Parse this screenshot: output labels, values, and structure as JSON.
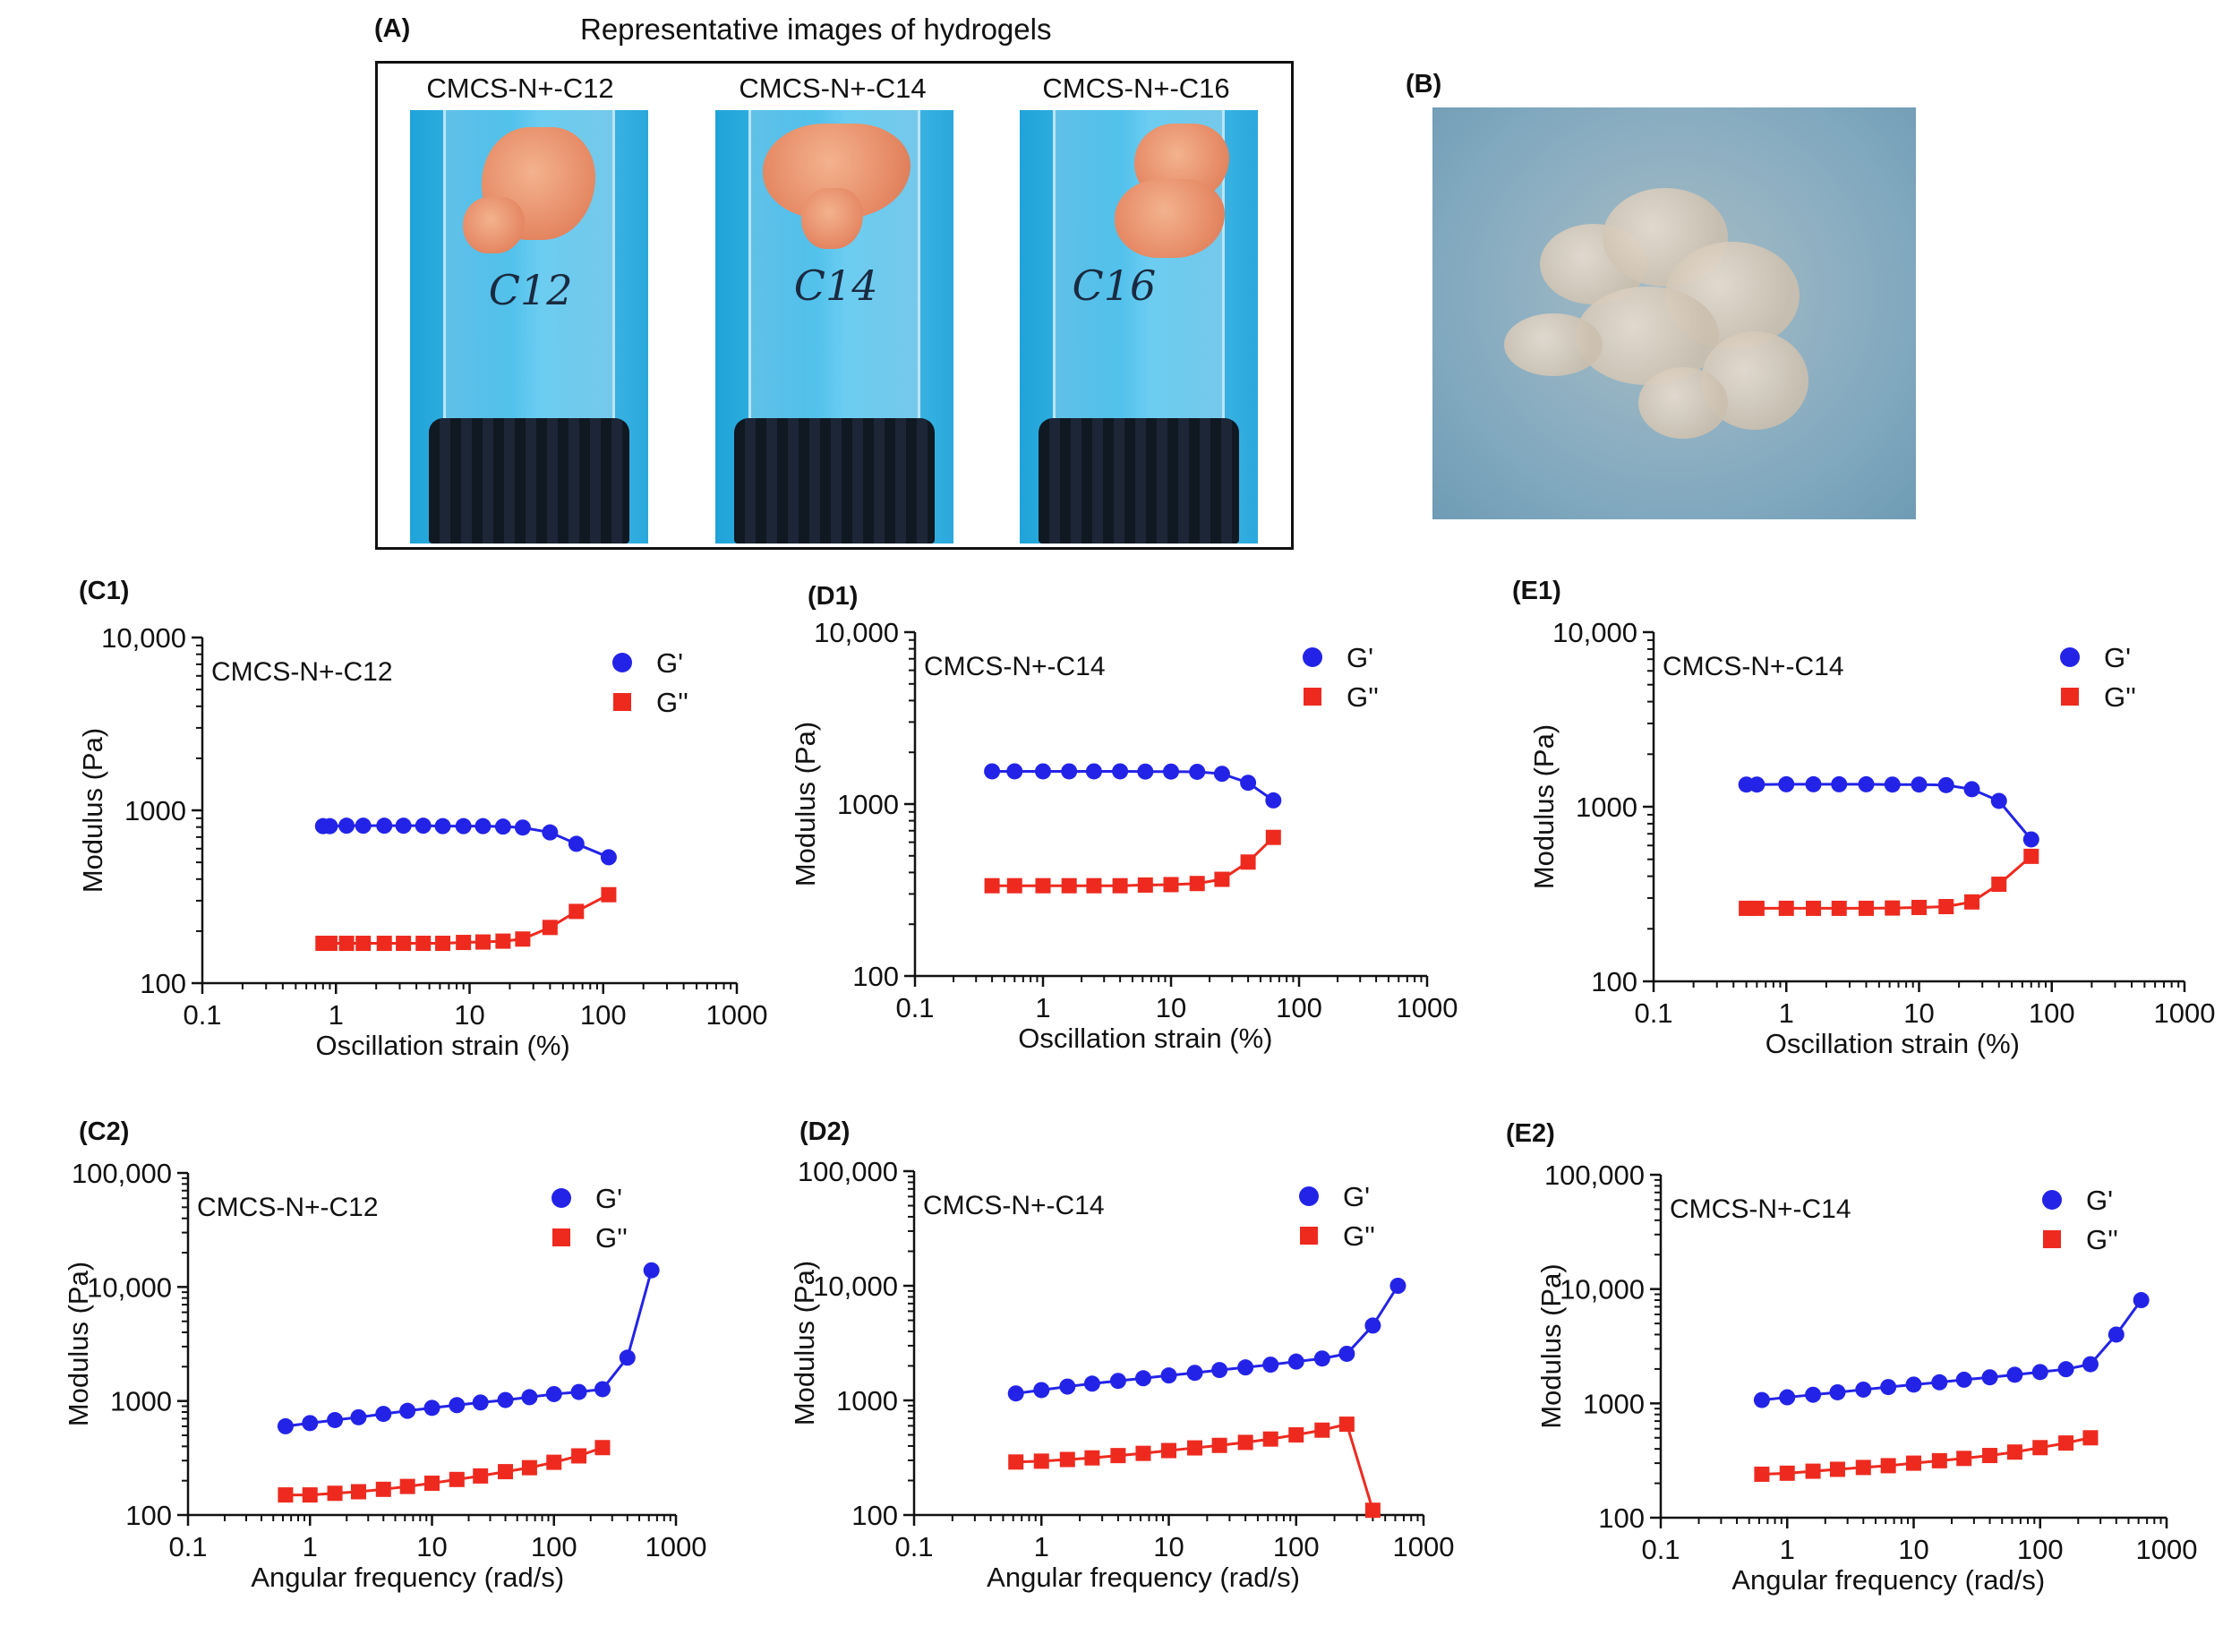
{
  "panel_a": {
    "letter": "(A)",
    "title": "Representative images of hydrogels",
    "vials": [
      {
        "label": "CMCS-N+-C12",
        "marker": "C12"
      },
      {
        "label": "CMCS-N+-C14",
        "marker": "C14"
      },
      {
        "label": "CMCS-N+-C16",
        "marker": "C16"
      }
    ]
  },
  "panel_b": {
    "letter": "(B)"
  },
  "colors": {
    "g_prime": "#2323e8",
    "g_double_prime": "#ee2a1f"
  },
  "chart_data": [
    {
      "id": "C1",
      "panel": "(C1)",
      "type": "scatter",
      "x_scale": "log",
      "y_scale": "log",
      "xlim": [
        0.1,
        1000
      ],
      "ylim": [
        100,
        10000
      ],
      "xticks": [
        0.1,
        1,
        10,
        100,
        1000
      ],
      "xtick_labels": [
        "0.1",
        "1",
        "10",
        "100",
        "1000"
      ],
      "yticks": [
        100,
        1000,
        10000
      ],
      "ytick_labels": [
        "100",
        "1000",
        "10,000"
      ],
      "xlabel": "Oscillation strain (%)",
      "ylabel": "Modulus (Pa)",
      "annotation": "CMCS-N+-C12",
      "legend_position": "top-right",
      "series": [
        {
          "name": "G'",
          "marker": "circle",
          "color": "#2323e8",
          "x": [
            0.8,
            0.9,
            1.2,
            1.6,
            2.3,
            3.2,
            4.5,
            6.3,
            9,
            12.6,
            17.8,
            25,
            40,
            63,
            110
          ],
          "y": [
            810,
            810,
            815,
            815,
            815,
            815,
            815,
            810,
            810,
            810,
            805,
            795,
            745,
            640,
            535
          ]
        },
        {
          "name": "G''",
          "marker": "square",
          "color": "#ee2a1f",
          "x": [
            0.8,
            0.9,
            1.2,
            1.6,
            2.3,
            3.2,
            4.5,
            6.3,
            9,
            12.6,
            17.8,
            25,
            40,
            63,
            110
          ],
          "y": [
            170,
            170,
            170,
            170,
            170,
            170,
            170,
            170,
            172,
            173,
            175,
            180,
            210,
            260,
            325
          ]
        }
      ]
    },
    {
      "id": "D1",
      "panel": "(D1)",
      "type": "scatter",
      "x_scale": "log",
      "y_scale": "log",
      "xlim": [
        0.1,
        1000
      ],
      "ylim": [
        100,
        10000
      ],
      "xticks": [
        0.1,
        1,
        10,
        100,
        1000
      ],
      "xtick_labels": [
        "0.1",
        "1",
        "10",
        "100",
        "1000"
      ],
      "yticks": [
        100,
        1000,
        10000
      ],
      "ytick_labels": [
        "100",
        "1000",
        "10,000"
      ],
      "xlabel": "Oscillation strain (%)",
      "ylabel": "Modulus (Pa)",
      "annotation": "CMCS-N+-C14",
      "legend_position": "top-right",
      "series": [
        {
          "name": "G'",
          "marker": "circle",
          "color": "#2323e8",
          "x": [
            0.4,
            0.6,
            1,
            1.6,
            2.5,
            4,
            6.3,
            10,
            16,
            25,
            40,
            63
          ],
          "y": [
            1550,
            1550,
            1550,
            1550,
            1550,
            1550,
            1545,
            1545,
            1540,
            1500,
            1330,
            1050
          ]
        },
        {
          "name": "G''",
          "marker": "square",
          "color": "#ee2a1f",
          "x": [
            0.4,
            0.6,
            1,
            1.6,
            2.5,
            4,
            6.3,
            10,
            16,
            25,
            40,
            63
          ],
          "y": [
            335,
            335,
            335,
            335,
            335,
            335,
            338,
            340,
            345,
            365,
            460,
            640
          ]
        }
      ]
    },
    {
      "id": "E1",
      "panel": "(E1)",
      "type": "scatter",
      "x_scale": "log",
      "y_scale": "log",
      "xlim": [
        0.1,
        1000
      ],
      "ylim": [
        100,
        10000
      ],
      "xticks": [
        0.1,
        1,
        10,
        100,
        1000
      ],
      "xtick_labels": [
        "0.1",
        "1",
        "10",
        "100",
        "1000"
      ],
      "yticks": [
        100,
        1000,
        10000
      ],
      "ytick_labels": [
        "100",
        "1000",
        "10,000"
      ],
      "xlabel": "Oscillation strain (%)",
      "ylabel": "Modulus (Pa)",
      "annotation": "CMCS-N+-C14",
      "legend_position": "top-right",
      "series": [
        {
          "name": "G'",
          "marker": "circle",
          "color": "#2323e8",
          "x": [
            0.5,
            0.6,
            1,
            1.6,
            2.5,
            4,
            6.3,
            10,
            16,
            25,
            40,
            70
          ],
          "y": [
            1340,
            1340,
            1345,
            1345,
            1345,
            1345,
            1340,
            1340,
            1330,
            1260,
            1080,
            650
          ]
        },
        {
          "name": "G''",
          "marker": "square",
          "color": "#ee2a1f",
          "x": [
            0.5,
            0.6,
            1,
            1.6,
            2.5,
            4,
            6.3,
            10,
            16,
            25,
            40,
            70
          ],
          "y": [
            262,
            262,
            262,
            262,
            262,
            262,
            263,
            265,
            268,
            285,
            360,
            520
          ]
        }
      ]
    },
    {
      "id": "C2",
      "panel": "(C2)",
      "type": "scatter",
      "x_scale": "log",
      "y_scale": "log",
      "xlim": [
        0.1,
        1000
      ],
      "ylim": [
        100,
        100000
      ],
      "xticks": [
        0.1,
        1,
        10,
        100,
        1000
      ],
      "xtick_labels": [
        "0.1",
        "1",
        "10",
        "100",
        "1000"
      ],
      "yticks": [
        100,
        1000,
        10000,
        100000
      ],
      "ytick_labels": [
        "100",
        "1000",
        "10,000",
        "100,000"
      ],
      "xlabel": "Angular frequency (rad/s)",
      "ylabel": "Modulus (Pa)",
      "annotation": "CMCS-N+-C12",
      "legend_position": "top-right",
      "series": [
        {
          "name": "G'",
          "marker": "circle",
          "color": "#2323e8",
          "x": [
            0.63,
            1,
            1.6,
            2.5,
            4,
            6.3,
            10,
            16,
            25,
            40,
            63,
            100,
            160,
            250,
            400,
            630
          ],
          "y": [
            600,
            640,
            680,
            720,
            770,
            820,
            870,
            920,
            970,
            1020,
            1080,
            1150,
            1200,
            1270,
            2400,
            14000
          ]
        },
        {
          "name": "G''",
          "marker": "square",
          "color": "#ee2a1f",
          "x": [
            0.63,
            1,
            1.6,
            2.5,
            4,
            6.3,
            10,
            16,
            25,
            40,
            63,
            100,
            160,
            250
          ],
          "y": [
            150,
            150,
            155,
            160,
            168,
            178,
            190,
            205,
            220,
            240,
            260,
            290,
            330,
            390
          ]
        }
      ]
    },
    {
      "id": "D2",
      "panel": "(D2)",
      "type": "scatter",
      "x_scale": "log",
      "y_scale": "log",
      "xlim": [
        0.1,
        1000
      ],
      "ylim": [
        100,
        100000
      ],
      "xticks": [
        0.1,
        1,
        10,
        100,
        1000
      ],
      "xtick_labels": [
        "0.1",
        "1",
        "10",
        "100",
        "1000"
      ],
      "yticks": [
        100,
        1000,
        10000,
        100000
      ],
      "ytick_labels": [
        "100",
        "1000",
        "10,000",
        "100,000"
      ],
      "xlabel": "Angular frequency (rad/s)",
      "ylabel": "Modulus (Pa)",
      "annotation": "CMCS-N+-C14",
      "legend_position": "top-right",
      "series": [
        {
          "name": "G'",
          "marker": "circle",
          "color": "#2323e8",
          "x": [
            0.63,
            1,
            1.6,
            2.5,
            4,
            6.3,
            10,
            16,
            25,
            40,
            63,
            100,
            160,
            250,
            400,
            630
          ],
          "y": [
            1150,
            1230,
            1320,
            1400,
            1480,
            1560,
            1650,
            1740,
            1840,
            1940,
            2050,
            2180,
            2320,
            2550,
            4500,
            10000
          ]
        },
        {
          "name": "G''",
          "marker": "square",
          "color": "#ee2a1f",
          "x": [
            0.63,
            1,
            1.6,
            2.5,
            4,
            6.3,
            10,
            16,
            25,
            40,
            63,
            100,
            160,
            250,
            400
          ],
          "y": [
            290,
            295,
            305,
            315,
            330,
            345,
            365,
            385,
            405,
            430,
            460,
            500,
            550,
            620,
            110
          ]
        }
      ]
    },
    {
      "id": "E2",
      "panel": "(E2)",
      "type": "scatter",
      "x_scale": "log",
      "y_scale": "log",
      "xlim": [
        0.1,
        1000
      ],
      "ylim": [
        100,
        100000
      ],
      "xticks": [
        0.1,
        1,
        10,
        100,
        1000
      ],
      "xtick_labels": [
        "0.1",
        "1",
        "10",
        "100",
        "1000"
      ],
      "yticks": [
        100,
        1000,
        10000,
        100000
      ],
      "ytick_labels": [
        "100",
        "1000",
        "10,000",
        "100,000"
      ],
      "xlabel": "Angular frequency (rad/s)",
      "ylabel": "Modulus (Pa)",
      "annotation": "CMCS-N+-C14",
      "legend_position": "top-right",
      "series": [
        {
          "name": "G'",
          "marker": "circle",
          "color": "#2323e8",
          "x": [
            0.63,
            1,
            1.6,
            2.5,
            4,
            6.3,
            10,
            16,
            25,
            40,
            63,
            100,
            160,
            250,
            400,
            630
          ],
          "y": [
            1070,
            1130,
            1190,
            1250,
            1320,
            1390,
            1460,
            1530,
            1610,
            1690,
            1780,
            1880,
            1990,
            2200,
            4000,
            8000
          ]
        },
        {
          "name": "G''",
          "marker": "square",
          "color": "#ee2a1f",
          "x": [
            0.63,
            1,
            1.6,
            2.5,
            4,
            6.3,
            10,
            16,
            25,
            40,
            63,
            100,
            160,
            250
          ],
          "y": [
            240,
            245,
            255,
            265,
            275,
            285,
            300,
            315,
            330,
            350,
            375,
            410,
            450,
            500
          ]
        }
      ]
    }
  ]
}
